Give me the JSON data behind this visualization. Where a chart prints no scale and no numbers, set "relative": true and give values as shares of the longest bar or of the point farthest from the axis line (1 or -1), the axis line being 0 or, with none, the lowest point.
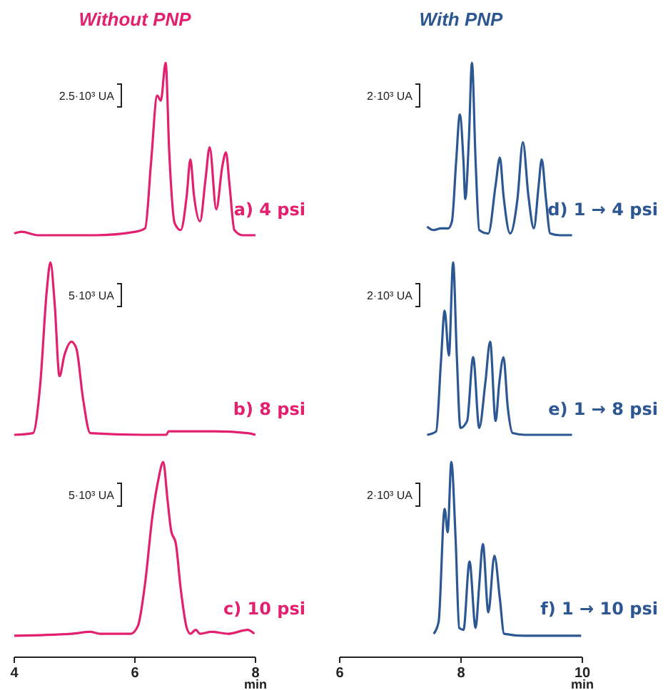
{
  "chart_data": [
    {
      "type": "line",
      "title": "Without PNP",
      "relative": true,
      "xlim": [
        4,
        8
      ],
      "annotations": [
        "2.5·10³ UA",
        "a) 4 psi"
      ],
      "series": [
        {
          "color": "#e2206f",
          "x": [
            4.0,
            4.12,
            4.39,
            5.34,
            6.01,
            6.17,
            6.27,
            6.37,
            6.43,
            6.51,
            6.57,
            6.66,
            6.76,
            6.86,
            6.92,
            6.98,
            7.08,
            7.17,
            7.24,
            7.35,
            7.45,
            7.51,
            7.57,
            7.65,
            7.79,
            8.0
          ],
          "values": [
            0.01,
            0.02,
            0,
            0,
            0.02,
            0.04,
            0.43,
            0.81,
            0.78,
            1.0,
            0.48,
            0.07,
            0.03,
            0.23,
            0.44,
            0.23,
            0.08,
            0.32,
            0.51,
            0.15,
            0.4,
            0.48,
            0.29,
            0.03,
            0,
            0
          ]
        }
      ]
    },
    {
      "type": "line",
      "title": "With PNP",
      "relative": true,
      "xlim": [
        6,
        10
      ],
      "annotations": [
        "2·10³ UA",
        "d) 1 → 4 psi"
      ],
      "series": [
        {
          "color": "#2c5793",
          "x": [
            7.44,
            7.55,
            7.67,
            7.79,
            7.85,
            7.92,
            7.98,
            8.04,
            8.07,
            8.13,
            8.18,
            8.24,
            8.3,
            8.45,
            8.57,
            8.64,
            8.7,
            8.81,
            8.93,
            9.02,
            9.11,
            9.2,
            9.28,
            9.33,
            9.4,
            9.47,
            9.63,
            9.83
          ],
          "values": [
            0.05,
            0.03,
            0.04,
            0.04,
            0.08,
            0.43,
            0.7,
            0.43,
            0.21,
            0.56,
            1.0,
            0.43,
            0.03,
            0.01,
            0.29,
            0.45,
            0.23,
            0.01,
            0.21,
            0.54,
            0.23,
            0.04,
            0.29,
            0.44,
            0.21,
            0.01,
            0,
            0
          ]
        }
      ]
    },
    {
      "type": "line",
      "relative": true,
      "xlim": [
        4,
        8
      ],
      "annotations": [
        "5·10³ UA",
        "b) 8 psi"
      ],
      "series": [
        {
          "color": "#e2206f",
          "x": [
            4.0,
            4.31,
            4.43,
            4.54,
            4.6,
            4.67,
            4.75,
            4.83,
            4.95,
            5.03,
            5.14,
            5.26,
            6.13,
            6.52,
            6.56,
            7.31,
            7.87,
            8.0
          ],
          "values": [
            0,
            0.01,
            0.29,
            0.84,
            1.0,
            0.76,
            0.34,
            0.46,
            0.54,
            0.5,
            0.21,
            0.01,
            0,
            0,
            0.02,
            0.02,
            0.01,
            0
          ]
        }
      ]
    },
    {
      "type": "line",
      "relative": true,
      "xlim": [
        6,
        10
      ],
      "annotations": [
        "2·10³ UA",
        "e) 1 → 8 psi"
      ],
      "series": [
        {
          "color": "#2c5793",
          "x": [
            7.44,
            7.59,
            7.67,
            7.73,
            7.8,
            7.87,
            7.93,
            7.99,
            8.1,
            8.2,
            8.3,
            8.4,
            8.48,
            8.57,
            8.63,
            8.7,
            8.77,
            8.85,
            9.04,
            9.36,
            9.83
          ],
          "values": [
            0,
            0.02,
            0.43,
            0.72,
            0.46,
            1.0,
            0.46,
            0.04,
            0.08,
            0.45,
            0.04,
            0.3,
            0.54,
            0.08,
            0.3,
            0.45,
            0.16,
            0.01,
            0,
            0,
            0
          ]
        }
      ]
    },
    {
      "type": "line",
      "relative": true,
      "xlim": [
        4,
        8
      ],
      "xticks": [
        4,
        6,
        8
      ],
      "xlabel": "min",
      "annotations": [
        "5·10³ UA",
        "c) 10 psi"
      ],
      "series": [
        {
          "color": "#e2206f",
          "x": [
            4.0,
            4.95,
            5.26,
            5.42,
            5.93,
            6.05,
            6.17,
            6.29,
            6.39,
            6.47,
            6.54,
            6.6,
            6.68,
            6.76,
            6.86,
            6.92,
            7.01,
            7.08,
            7.27,
            7.55,
            7.87,
            7.98
          ],
          "values": [
            0.11,
            0.12,
            0.13,
            0.12,
            0.12,
            0.16,
            0.38,
            0.72,
            0.91,
            1.0,
            0.81,
            0.65,
            0.58,
            0.35,
            0.15,
            0.12,
            0.14,
            0.12,
            0.13,
            0.12,
            0.14,
            0.12
          ]
        }
      ]
    },
    {
      "type": "line",
      "relative": true,
      "xlim": [
        6,
        10
      ],
      "xticks": [
        6,
        8,
        10
      ],
      "xlabel": "min",
      "annotations": [
        "2·10³ UA",
        "f) 1 → 10 psi"
      ],
      "series": [
        {
          "color": "#2c5793",
          "x": [
            7.55,
            7.63,
            7.73,
            7.78,
            7.84,
            7.91,
            7.97,
            8.04,
            8.14,
            8.24,
            8.3,
            8.36,
            8.45,
            8.55,
            8.64,
            8.71,
            9.04,
            9.98
          ],
          "values": [
            0.12,
            0.18,
            0.76,
            0.64,
            1.0,
            0.61,
            0.15,
            0.14,
            0.49,
            0.15,
            0.37,
            0.58,
            0.23,
            0.52,
            0.3,
            0.12,
            0.11,
            0.11
          ]
        }
      ]
    }
  ]
}
